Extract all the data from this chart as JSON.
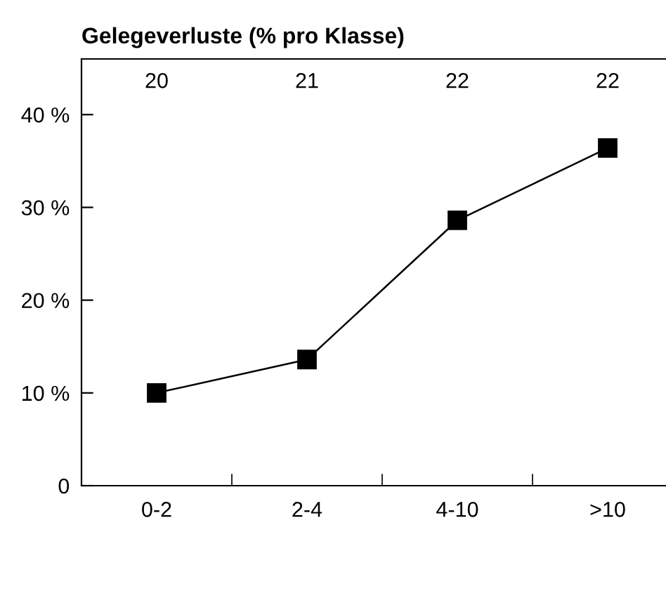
{
  "chart_data": {
    "type": "line",
    "title": "Gelegeverluste (% pro Klasse)",
    "categories": [
      "0-2",
      "2-4",
      "4-10",
      ">10"
    ],
    "values": [
      10.0,
      13.6,
      28.6,
      36.4
    ],
    "color": "#000000",
    "marker": "square",
    "line_style": "solid",
    "ylim": [
      0,
      46
    ],
    "yticks": [
      0,
      {
        "value": 10,
        "label": "10 %"
      },
      {
        "value": 20,
        "label": "20 %"
      },
      {
        "value": 30,
        "label": "30 %"
      },
      {
        "value": 40,
        "label": "40 %"
      }
    ],
    "annotations": [
      "20",
      "21",
      "22",
      "22"
    ],
    "grid": false,
    "legend": false
  }
}
